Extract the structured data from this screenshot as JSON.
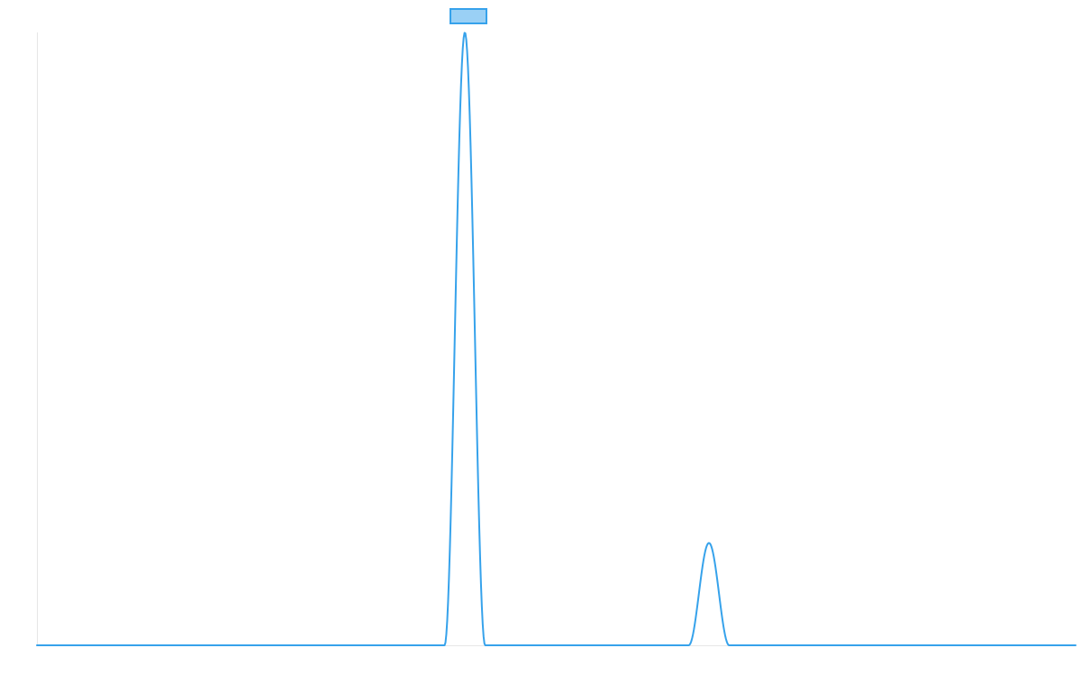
{
  "colors": {
    "series": "#36a2eb",
    "series_fill": "#9ad0f5",
    "axis": "#e6e6e6",
    "background": "#ffffff"
  },
  "chart_data": {
    "type": "line",
    "title": "",
    "xlabel": "",
    "ylabel": "",
    "legend": "top",
    "grid": false,
    "xlim": [
      0,
      1
    ],
    "ylim": [
      0,
      1
    ],
    "series": [
      {
        "baseline": 0,
        "peaks": [
          {
            "center": 0.412,
            "height": 1.0,
            "half_width": 0.0195
          },
          {
            "center": 0.647,
            "height": 0.167,
            "half_width": 0.0195
          }
        ]
      }
    ]
  }
}
